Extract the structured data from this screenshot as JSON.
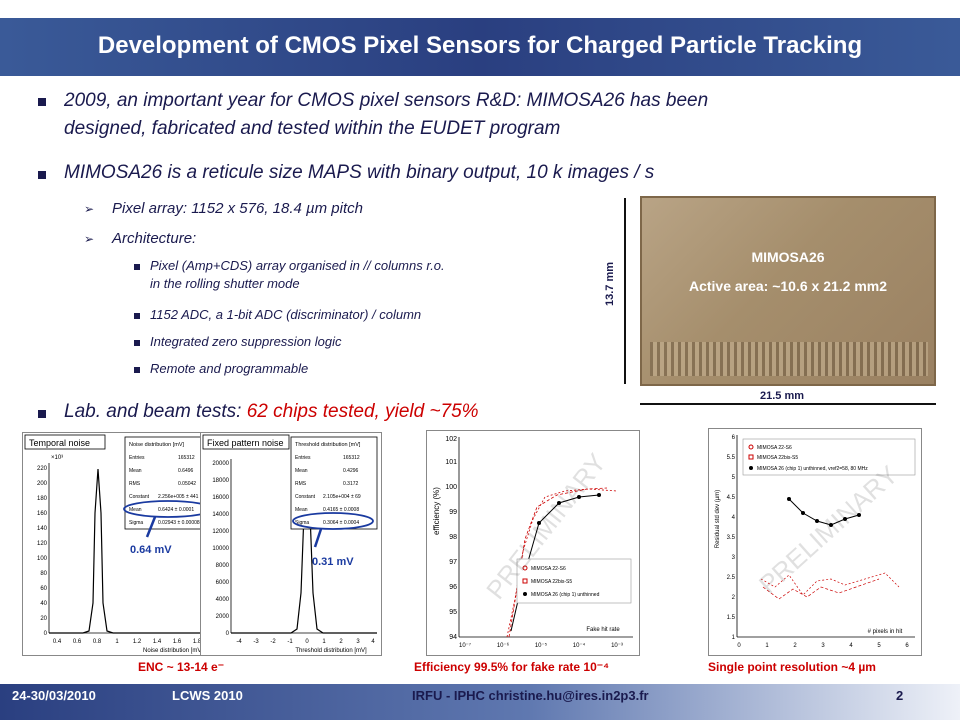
{
  "slide": {
    "title": "Development of CMOS Pixel Sensors for Charged Particle Tracking",
    "bullets": {
      "b1_line1": "2009, an important year for CMOS pixel sensors R&D: MIMOSA26 has been",
      "b1_line2": "designed, fabricated and tested within the EUDET program",
      "b2": "MIMOSA26 is a reticule size MAPS with binary output, 10 k images / s",
      "sub_pixel_array": "Pixel array:   1152 x 576, 18.4 µm pitch",
      "sub_architecture": "Architecture:",
      "arch1_line1": "Pixel (Amp+CDS) array organised in // columns r.o.",
      "arch1_line2": "in the rolling shutter mode",
      "arch2": "1152 ADC, a 1-bit ADC (discriminator) / column",
      "arch3": "Integrated zero suppression logic",
      "arch4": " Remote and programmable",
      "b3_prefix": "Lab. and  beam tests: ",
      "b3_highlight": "62 chips tested, yield ~75%"
    },
    "chip_image": {
      "name": "MIMOSA26",
      "active_area": "Active area: ~10.6 x 21.2 mm2",
      "height_label": "13.7 mm",
      "width_label": "21.5 mm"
    },
    "plots": {
      "temporal": {
        "title": "Temporal noise",
        "stats_title": "Noise distribution [mV]",
        "stats": [
          [
            "Entries",
            "165312"
          ],
          [
            "Mean",
            "0.6496"
          ],
          [
            "RMS",
            "0.05042"
          ],
          [
            "Constant",
            "2.256e+005 ± 441"
          ],
          [
            "Mean",
            "0.6424 ± 0.0001"
          ],
          [
            "Sigma",
            "0.02943 ± 0.00008"
          ]
        ],
        "xlabel": "Noise distribution [mV]",
        "xticks": [
          "0.4",
          "0.6",
          "0.8",
          "1",
          "1.2",
          "1.4",
          "1.6",
          "1.8"
        ],
        "yticks": [
          "0",
          "20",
          "40",
          "60",
          "80",
          "100",
          "120",
          "140",
          "160",
          "180",
          "200",
          "220"
        ],
        "exponent": "×10³",
        "annotation": "0.64 mV"
      },
      "fixed": {
        "title": "Fixed pattern noise",
        "stats_title": "Threshold distribution [mV]",
        "stats": [
          [
            "Entries",
            "165312"
          ],
          [
            "Mean",
            "0.4296"
          ],
          [
            "RMS",
            "0.3172"
          ],
          [
            "Constant",
            "2.105e+004 ± 69"
          ],
          [
            "Mean",
            "0.4165 ± 0.0008"
          ],
          [
            "Sigma",
            "0.3064 ± 0.0004"
          ]
        ],
        "xlabel": "Threshold distribution [mV]",
        "xticks": [
          "-4",
          "-3",
          "-2",
          "-1",
          "0",
          "1",
          "2",
          "3",
          "4"
        ],
        "yticks": [
          "0",
          "2000",
          "4000",
          "6000",
          "8000",
          "10000",
          "12000",
          "14000",
          "16000",
          "18000",
          "20000"
        ],
        "annotation": "0.31 mV"
      },
      "efficiency": {
        "ylabel": "efficiency (%)",
        "xlabel": "Fake hit rate",
        "yticks": [
          "94",
          "95",
          "96",
          "97",
          "98",
          "99",
          "100",
          "101",
          "102"
        ],
        "xticks": [
          "10⁻⁷",
          "10⁻⁶",
          "10⁻⁵",
          "10⁻⁴",
          "10⁻³"
        ],
        "legend": [
          "MIMOSA 22-S6",
          "MIMOSA 22bis-S5",
          "MIMOSA 26 (chip 1) unthinned"
        ],
        "watermark": "PRELIMINARY"
      },
      "resolution": {
        "ylabel": "Residual std dev (µm)",
        "xlabel": "# pixels in hit",
        "yticks": [
          "1",
          "1.5",
          "2",
          "2.5",
          "3",
          "3.5",
          "4",
          "4.5",
          "5",
          "5.5",
          "6"
        ],
        "xticks": [
          "0",
          "1",
          "2",
          "3",
          "4",
          "5",
          "6"
        ],
        "legend": [
          "MIMOSA 22-S6",
          "MIMOSA 22bis-S5",
          "MIMOSA 26 (chip 1) unthinned, vref2=58, 80 MHz"
        ],
        "watermark": "PRELIMINARY"
      }
    },
    "captions": {
      "enc": "ENC ~ 13-14 e⁻",
      "efficiency": "Efficiency 99.5% for fake rate 10⁻⁴",
      "resolution": "Single point resolution ~4 µm"
    },
    "footer": {
      "date": "24-30/03/2010",
      "conference": "LCWS 2010",
      "affiliation": "IRFU - IPHC   christine.hu@ires.in2p3.fr",
      "page": "2"
    },
    "colors": {
      "title_bar": "#2a3f80",
      "text": "#1a1a4e",
      "highlight": "#cc0000",
      "footer": "#2a3f80"
    }
  }
}
